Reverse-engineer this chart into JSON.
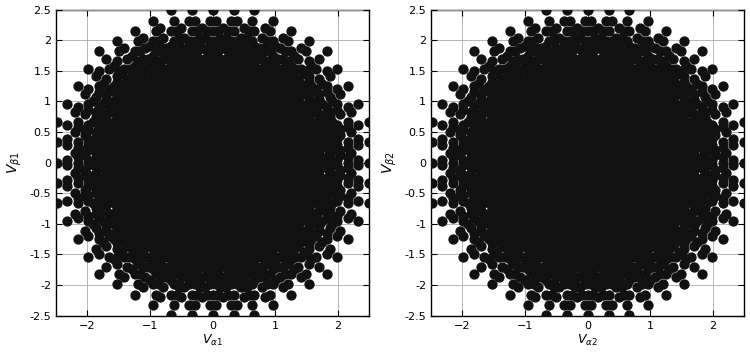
{
  "ylabel1": "V_{β1}",
  "ylabel2": "V_{β2}",
  "xlabel1": "V_{α1}",
  "xlabel2": "V_{α2}",
  "xlim": [
    -2.5,
    2.5
  ],
  "ylim": [
    -2.5,
    2.5
  ],
  "xticks": [
    -2,
    -1,
    0,
    1,
    2
  ],
  "yticks": [
    -2.5,
    -2,
    -1.5,
    -1,
    -0.5,
    0,
    0.5,
    1,
    1.5,
    2,
    2.5
  ],
  "marker_size": 55,
  "marker_color": "#111111",
  "bg_color": "#ffffff",
  "grid_color": "#aaaaaa",
  "figsize": [
    7.5,
    3.54
  ],
  "dpi": 100
}
